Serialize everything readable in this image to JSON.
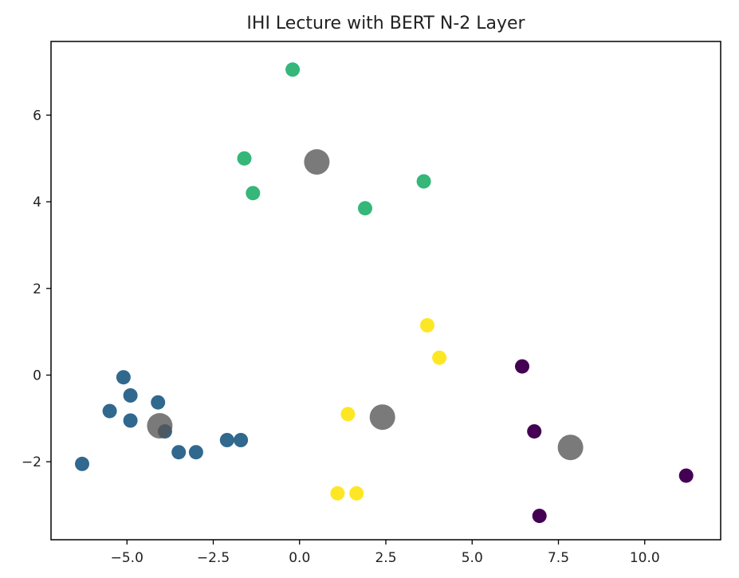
{
  "chart_data": {
    "type": "scatter",
    "title": "IHI Lecture with BERT N-2 Layer",
    "xlabel": "",
    "ylabel": "",
    "xlim": [
      -7.2,
      12.2
    ],
    "ylim": [
      -3.8,
      7.7
    ],
    "grid": false,
    "xticks": [
      -5.0,
      -2.5,
      0.0,
      2.5,
      5.0,
      7.5,
      10.0
    ],
    "xtick_labels": [
      "−5.0",
      "−2.5",
      "0.0",
      "2.5",
      "5.0",
      "7.5",
      "10.0"
    ],
    "yticks": [
      -2,
      0,
      2,
      4,
      6
    ],
    "ytick_labels": [
      "−2",
      "0",
      "2",
      "4",
      "6"
    ],
    "clusters": [
      {
        "color": "#35b779",
        "points": [
          [
            -0.2,
            7.05
          ],
          [
            -1.6,
            5.0
          ],
          [
            -1.35,
            4.2
          ],
          [
            1.9,
            3.85
          ],
          [
            3.6,
            4.47
          ]
        ]
      },
      {
        "color": "#31688e",
        "points": [
          [
            -5.1,
            -0.05
          ],
          [
            -4.9,
            -0.47
          ],
          [
            -4.1,
            -0.63
          ],
          [
            -5.5,
            -0.83
          ],
          [
            -4.9,
            -1.05
          ],
          [
            -3.9,
            -1.3
          ],
          [
            -3.5,
            -1.78
          ],
          [
            -3.0,
            -1.78
          ],
          [
            -2.1,
            -1.5
          ],
          [
            -1.7,
            -1.5
          ],
          [
            -6.3,
            -2.05
          ]
        ]
      },
      {
        "color": "#fde725",
        "points": [
          [
            3.7,
            1.15
          ],
          [
            4.05,
            0.4
          ],
          [
            1.4,
            -0.9
          ],
          [
            1.1,
            -2.73
          ],
          [
            1.65,
            -2.73
          ]
        ]
      },
      {
        "color": "#440154",
        "points": [
          [
            6.45,
            0.2
          ],
          [
            6.8,
            -1.3
          ],
          [
            6.95,
            -3.25
          ],
          [
            11.2,
            -2.32
          ]
        ]
      }
    ],
    "centroids": {
      "color": "#555555",
      "points": [
        [
          0.5,
          4.92
        ],
        [
          -4.05,
          -1.17
        ],
        [
          2.4,
          -0.97
        ],
        [
          7.85,
          -1.67
        ]
      ]
    }
  }
}
